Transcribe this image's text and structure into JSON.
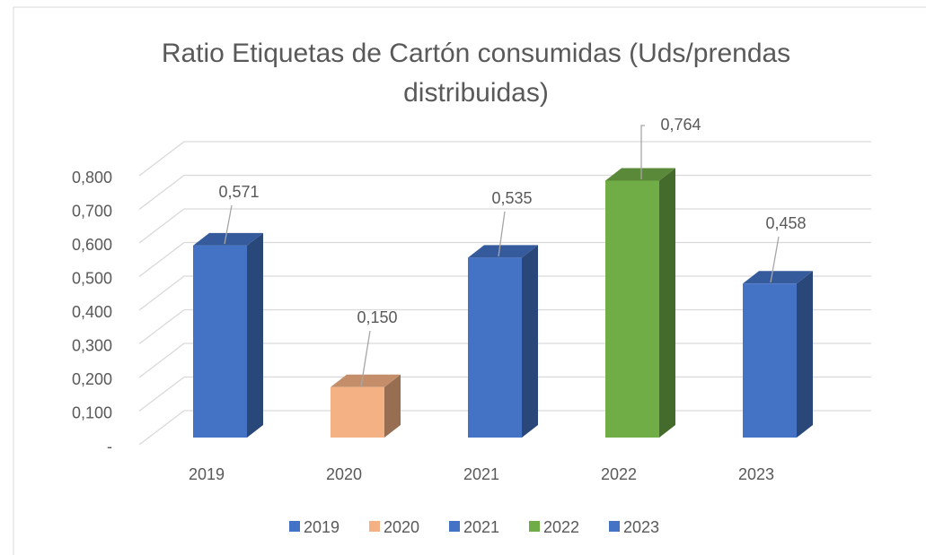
{
  "chart_data": {
    "type": "bar3d",
    "title": "Ratio Etiquetas de Cartón consumidas (Uds/prendas distribuidas)",
    "categories": [
      "2019",
      "2020",
      "2021",
      "2022",
      "2023"
    ],
    "values": [
      0.571,
      0.15,
      0.535,
      0.764,
      0.458
    ],
    "value_labels": [
      "0,571",
      "0,150",
      "0,535",
      "0,764",
      "0,458"
    ],
    "colors": [
      "#4472c4",
      "#f4b183",
      "#4472c4",
      "#70ad47",
      "#4472c4"
    ],
    "ylim": [
      0,
      0.8
    ],
    "yticks": [
      {
        "value": 0,
        "label": "-"
      },
      {
        "value": 0.1,
        "label": "0,100"
      },
      {
        "value": 0.2,
        "label": "0,200"
      },
      {
        "value": 0.3,
        "label": "0,300"
      },
      {
        "value": 0.4,
        "label": "0,400"
      },
      {
        "value": 0.5,
        "label": "0,500"
      },
      {
        "value": 0.6,
        "label": "0,600"
      },
      {
        "value": 0.7,
        "label": "0,700"
      },
      {
        "value": 0.8,
        "label": "0,800"
      }
    ],
    "grid": true,
    "legend": "bottom"
  }
}
